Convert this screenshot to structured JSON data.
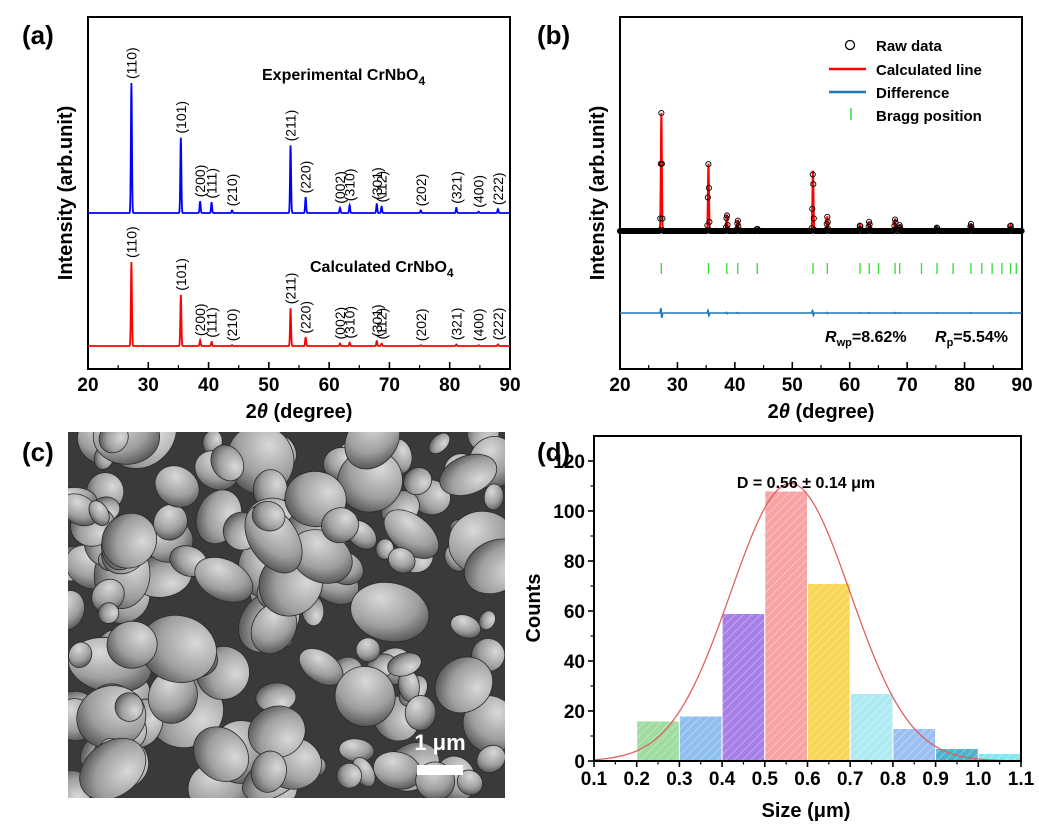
{
  "panels": {
    "a": {
      "label": "(a)"
    },
    "b": {
      "label": "(b)"
    },
    "c": {
      "label": "(c)"
    },
    "d": {
      "label": "(d)"
    }
  },
  "colors": {
    "experimental": "#0000ff",
    "calculated": "#ff0000",
    "difference": "#1f77b4",
    "bragg": "#33dd33",
    "gauss": "#e06060"
  },
  "chart_data": [
    {
      "panel": "a",
      "type": "line",
      "xlabel_prefix": "2",
      "xlabel_theta": "θ",
      "xlabel_suffix": " (degree)",
      "ylabel": "Intensity (arb.unit)",
      "xlim": [
        20,
        90
      ],
      "xticks": [
        20,
        30,
        40,
        50,
        60,
        70,
        80,
        90
      ],
      "series": [
        {
          "name_main": "Experimental CrNbO",
          "name_sub": "4",
          "peaks": [
            {
              "x": 27.2,
              "h": 1.0,
              "hkl": "(110)"
            },
            {
              "x": 35.4,
              "h": 0.58,
              "hkl": "(101)"
            },
            {
              "x": 38.6,
              "h": 0.09,
              "hkl": "(200)"
            },
            {
              "x": 40.5,
              "h": 0.08,
              "hkl": "(111)"
            },
            {
              "x": 43.9,
              "h": 0.02,
              "hkl": "(210)"
            },
            {
              "x": 53.6,
              "h": 0.52,
              "hkl": "(211)"
            },
            {
              "x": 56.1,
              "h": 0.12,
              "hkl": "(220)"
            },
            {
              "x": 61.8,
              "h": 0.04,
              "hkl": "(002)"
            },
            {
              "x": 63.4,
              "h": 0.06,
              "hkl": "(310)"
            },
            {
              "x": 67.9,
              "h": 0.07,
              "hkl": "(301)"
            },
            {
              "x": 68.7,
              "h": 0.05,
              "hkl": "(112)"
            },
            {
              "x": 75.2,
              "h": 0.02,
              "hkl": "(202)"
            },
            {
              "x": 81.1,
              "h": 0.04,
              "hkl": "(321)"
            },
            {
              "x": 84.8,
              "h": 0.01,
              "hkl": "(400)"
            },
            {
              "x": 88.0,
              "h": 0.03,
              "hkl": "(222)"
            }
          ]
        },
        {
          "name_main": "Calculated CrNbO",
          "name_sub": "4",
          "peaks": [
            {
              "x": 27.2,
              "h": 1.0,
              "hkl": "(110)"
            },
            {
              "x": 35.4,
              "h": 0.61,
              "hkl": "(101)"
            },
            {
              "x": 38.6,
              "h": 0.07,
              "hkl": "(200)"
            },
            {
              "x": 40.5,
              "h": 0.05,
              "hkl": "(111)"
            },
            {
              "x": 43.9,
              "h": 0.01,
              "hkl": "(210)"
            },
            {
              "x": 53.6,
              "h": 0.45,
              "hkl": "(211)"
            },
            {
              "x": 56.1,
              "h": 0.1,
              "hkl": "(220)"
            },
            {
              "x": 61.8,
              "h": 0.03,
              "hkl": "(002)"
            },
            {
              "x": 63.4,
              "h": 0.04,
              "hkl": "(310)"
            },
            {
              "x": 67.9,
              "h": 0.06,
              "hkl": "(301)"
            },
            {
              "x": 68.7,
              "h": 0.03,
              "hkl": "(112)"
            },
            {
              "x": 75.2,
              "h": 0.01,
              "hkl": "(202)"
            },
            {
              "x": 81.1,
              "h": 0.02,
              "hkl": "(321)"
            },
            {
              "x": 84.8,
              "h": 0.01,
              "hkl": "(400)"
            },
            {
              "x": 88.0,
              "h": 0.02,
              "hkl": "(222)"
            }
          ]
        }
      ]
    },
    {
      "panel": "b",
      "type": "line",
      "xlabel_prefix": "2",
      "xlabel_theta": "θ",
      "xlabel_suffix": " (degree)",
      "ylabel": "Intensity (arb.unit)",
      "xlim": [
        20,
        90
      ],
      "xticks": [
        20,
        30,
        40,
        50,
        60,
        70,
        80,
        90
      ],
      "legend": [
        "Raw data",
        "Calculated line",
        "Difference",
        "Bragg position"
      ],
      "legend_placement": "top-right",
      "peaks": [
        {
          "x": 27.2,
          "h": 1.0
        },
        {
          "x": 35.4,
          "h": 0.57
        },
        {
          "x": 38.6,
          "h": 0.14
        },
        {
          "x": 40.5,
          "h": 0.09
        },
        {
          "x": 43.9,
          "h": 0.02
        },
        {
          "x": 53.6,
          "h": 0.51
        },
        {
          "x": 56.1,
          "h": 0.12
        },
        {
          "x": 61.8,
          "h": 0.05
        },
        {
          "x": 63.4,
          "h": 0.08
        },
        {
          "x": 67.9,
          "h": 0.1
        },
        {
          "x": 68.7,
          "h": 0.05
        },
        {
          "x": 75.2,
          "h": 0.03
        },
        {
          "x": 81.1,
          "h": 0.06
        },
        {
          "x": 88.0,
          "h": 0.05
        }
      ],
      "bragg_positions": [
        27.2,
        35.4,
        38.6,
        40.5,
        43.9,
        53.6,
        56.1,
        61.8,
        63.4,
        65.0,
        67.9,
        68.7,
        72.5,
        75.2,
        78.0,
        81.1,
        83.0,
        84.8,
        86.5,
        88.0,
        89.0
      ],
      "stats": {
        "rwp_label": "R",
        "rwp_sub": "wp",
        "rwp_value": "=8.62%",
        "rp_label": "R",
        "rp_sub": "p",
        "rp_value": "=5.54%"
      }
    },
    {
      "panel": "d",
      "type": "bar",
      "xlabel": "Size (μm)",
      "ylabel": "Counts",
      "xlim": [
        0.1,
        1.1
      ],
      "ylim": [
        0,
        130
      ],
      "xticks": [
        "0.1",
        "0.2",
        "0.3",
        "0.4",
        "0.5",
        "0.6",
        "0.7",
        "0.8",
        "0.9",
        "1.0",
        "1.1"
      ],
      "yticks": [
        0,
        20,
        40,
        60,
        80,
        100,
        120
      ],
      "annotation": "D = 0.56 ± 0.14 μm",
      "fit": {
        "type": "gaussian",
        "mean": 0.56,
        "sd": 0.14,
        "peak": 111
      },
      "bins": [
        {
          "start": 0.2,
          "end": 0.3,
          "count": 16,
          "color": "#9fdc9f"
        },
        {
          "start": 0.3,
          "end": 0.4,
          "count": 18,
          "color": "#8fbfef"
        },
        {
          "start": 0.4,
          "end": 0.5,
          "count": 59,
          "color": "#a77fe6"
        },
        {
          "start": 0.5,
          "end": 0.6,
          "count": 108,
          "color": "#f7a3a3"
        },
        {
          "start": 0.6,
          "end": 0.7,
          "count": 71,
          "color": "#f7d556"
        },
        {
          "start": 0.7,
          "end": 0.8,
          "count": 27,
          "color": "#aeeaf2"
        },
        {
          "start": 0.8,
          "end": 0.9,
          "count": 13,
          "color": "#9bbff2"
        },
        {
          "start": 0.9,
          "end": 1.0,
          "count": 5,
          "color": "#4db3cc"
        },
        {
          "start": 1.0,
          "end": 1.1,
          "count": 3,
          "color": "#7fe8f0"
        }
      ]
    }
  ],
  "sem": {
    "scale_bar_label": "1 μm"
  }
}
